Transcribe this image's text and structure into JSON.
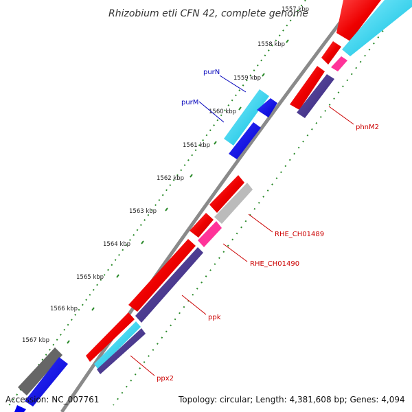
{
  "title": "Rhizobium etli CFN 42, complete genome",
  "footer": {
    "accession": "Accession: NC_007761",
    "summary": "Topology: circular; Length: 4,381,608 bp; Genes: 4,094"
  },
  "ticks": [
    "1557 kbp",
    "1558 kbp",
    "1559 kbp",
    "1560 kbp",
    "1561 kbp",
    "1562 kbp",
    "1563 kbp",
    "1564 kbp",
    "1565 kbp",
    "1566 kbp",
    "1567 kbp"
  ],
  "gene_labels": {
    "purN": "purN",
    "purM": "purM",
    "phnM2": "phnM2",
    "rhe_ch01489": "RHE_CH01489",
    "rhe_ch01490": "RHE_CH01490",
    "ppk": "ppk",
    "ppx2": "ppx2"
  },
  "colors": {
    "backbone": "#8a8a8a",
    "gc_ticks": "#2a8a2a",
    "gene_red": "#ee0000",
    "gene_cyan": "#33ccee",
    "gene_blue": "#0000ee",
    "gene_navy": "#443388",
    "gene_pink": "#ff3399",
    "gene_gray": "#bbbbbb",
    "gene_dark": "#666666",
    "label_red": "#cc0000",
    "label_blue": "#0000bb"
  }
}
